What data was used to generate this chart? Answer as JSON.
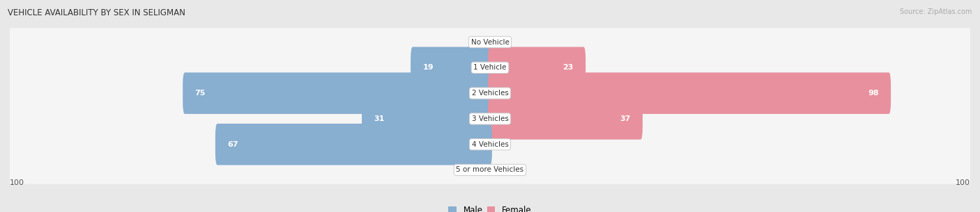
{
  "title": "VEHICLE AVAILABILITY BY SEX IN SELIGMAN",
  "source": "Source: ZipAtlas.com",
  "categories": [
    "No Vehicle",
    "1 Vehicle",
    "2 Vehicles",
    "3 Vehicles",
    "4 Vehicles",
    "5 or more Vehicles"
  ],
  "male_values": [
    0,
    19,
    75,
    31,
    67,
    0
  ],
  "female_values": [
    0,
    23,
    98,
    37,
    0,
    0
  ],
  "male_color": "#88aed0",
  "female_color": "#e8909e",
  "max_value": 100,
  "background_color": "#e8e8e8",
  "row_bg_color": "#f0f0f0"
}
